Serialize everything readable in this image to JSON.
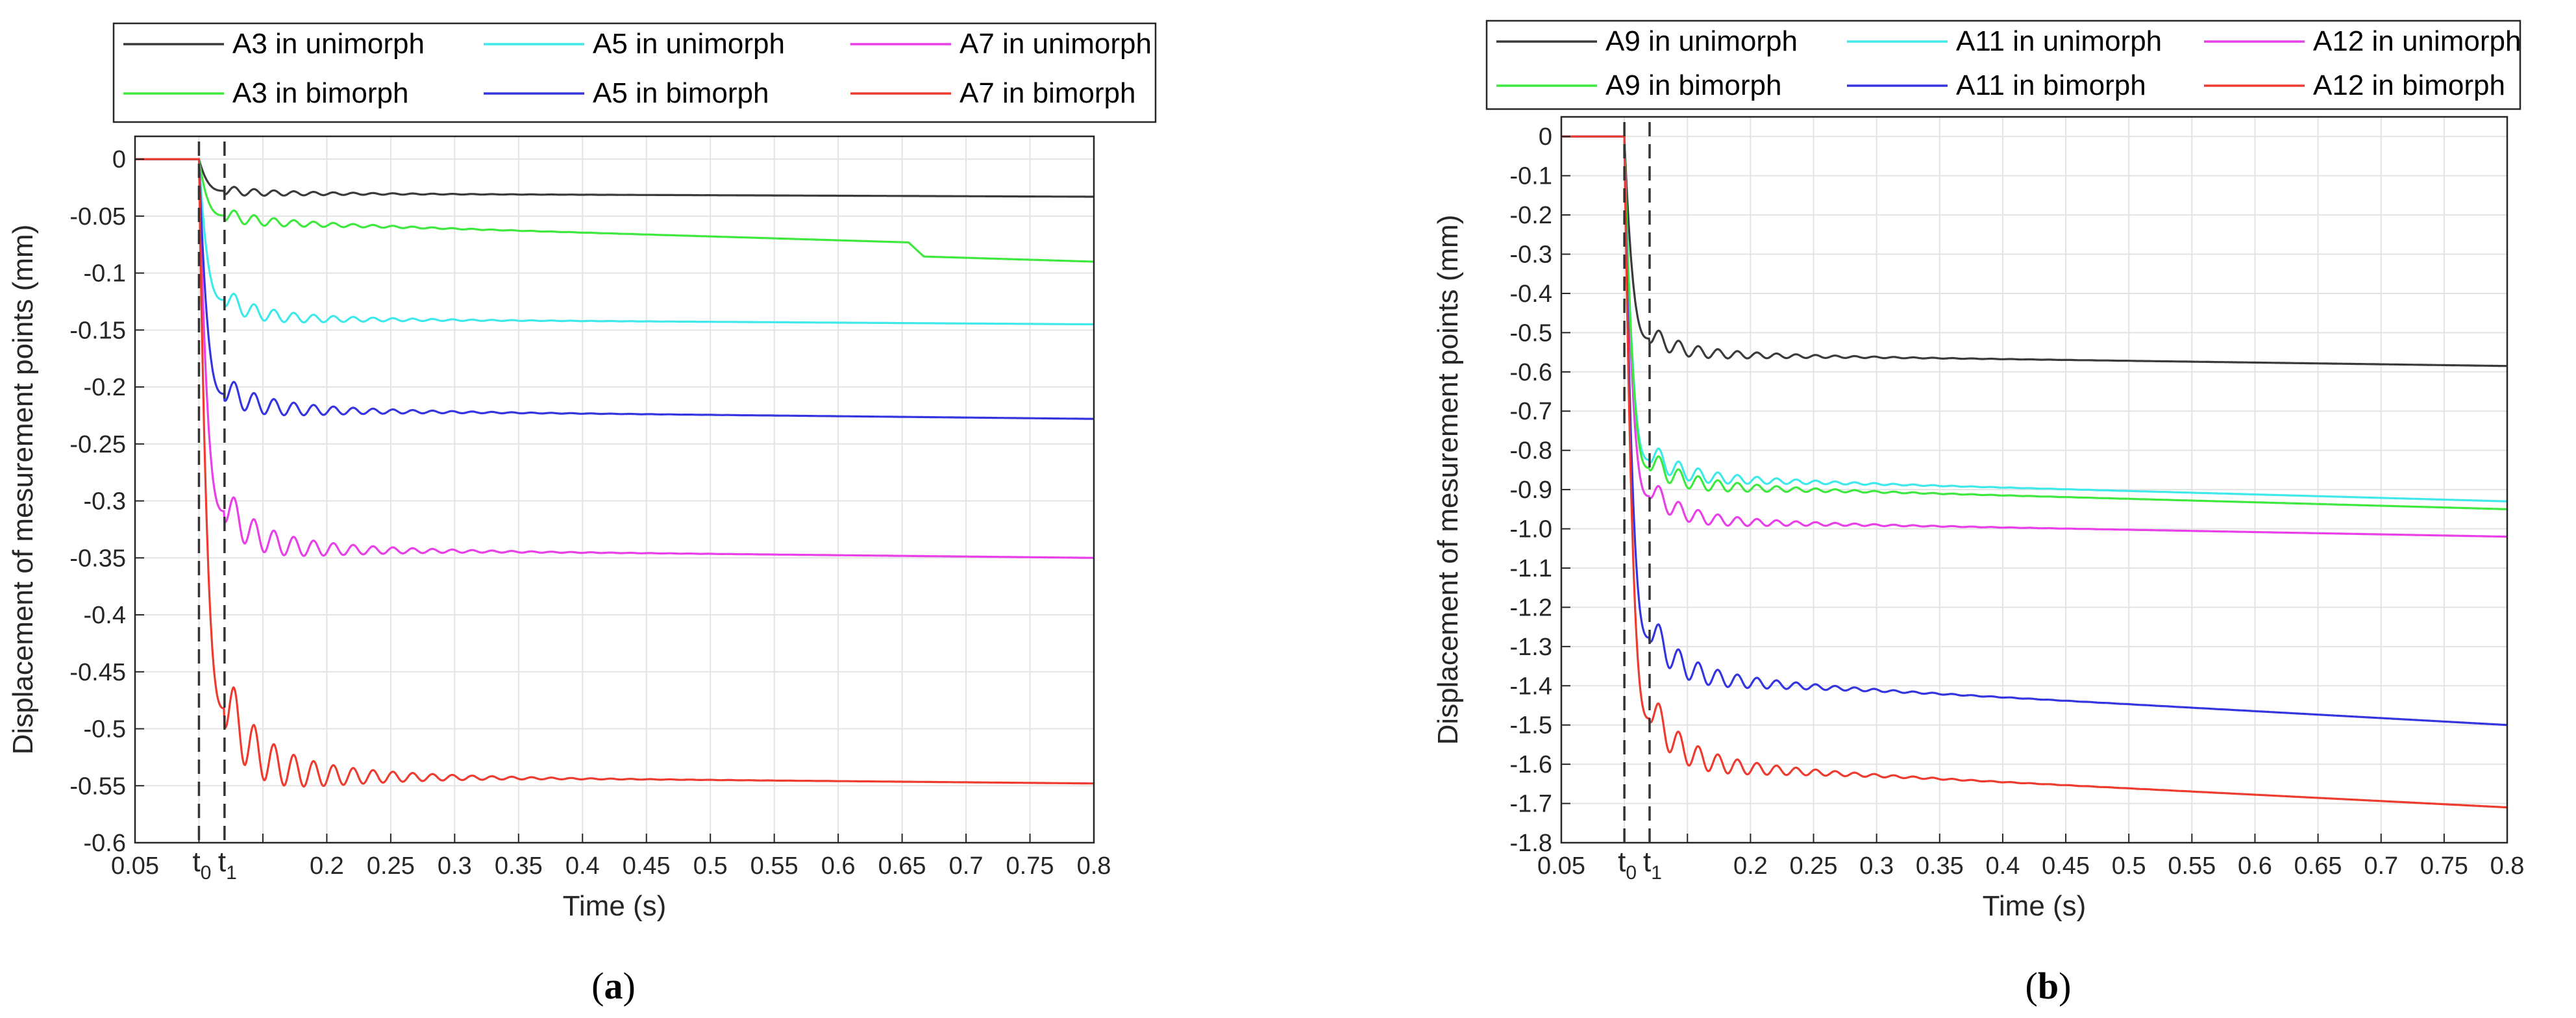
{
  "figure": {
    "caption_a": {
      "open": "(",
      "letter": "a",
      "close": ")"
    },
    "caption_b": {
      "open": "(",
      "letter": "b",
      "close": ")"
    }
  },
  "chart_data": [
    {
      "id": "a",
      "type": "line",
      "xlabel": "Time (s)",
      "ylabel": "Displacement of mesurement points (mm)",
      "xlim": [
        0.05,
        0.8
      ],
      "ylim": [
        -0.6,
        0.02
      ],
      "xticks": [
        0.05,
        0.2,
        0.25,
        0.3,
        0.35,
        0.4,
        0.45,
        0.5,
        0.55,
        0.6,
        0.65,
        0.7,
        0.75,
        0.8
      ],
      "xtick_labels": [
        "0.05",
        "0.2",
        "0.25",
        "0.3",
        "0.35",
        "0.4",
        "0.45",
        "0.5",
        "0.55",
        "0.6",
        "0.65",
        "0.7",
        "0.75",
        "0.8"
      ],
      "xgrid": [
        0.05,
        0.1,
        0.15,
        0.2,
        0.25,
        0.3,
        0.35,
        0.4,
        0.45,
        0.5,
        0.55,
        0.6,
        0.65,
        0.7,
        0.75,
        0.8
      ],
      "yticks": [
        0,
        -0.05,
        -0.1,
        -0.15,
        -0.2,
        -0.25,
        -0.3,
        -0.35,
        -0.4,
        -0.45,
        -0.5,
        -0.55,
        -0.6
      ],
      "ytick_labels": [
        "0",
        "-0.05",
        "-0.1",
        "-0.15",
        "-0.2",
        "-0.25",
        "-0.3",
        "-0.35",
        "-0.4",
        "-0.45",
        "-0.5",
        "-0.55",
        "-0.6"
      ],
      "grid": true,
      "markers": [
        {
          "label": "t",
          "sub": "0",
          "x": 0.1
        },
        {
          "label": "t",
          "sub": "1",
          "x": 0.12
        }
      ],
      "t0": 0.1,
      "t1": 0.12,
      "legend_position": "top",
      "series": [
        {
          "name": "A3 in unimorph",
          "color": "#3a3a3a",
          "final": -0.033,
          "peak": -0.027,
          "amp": 0.004,
          "settle": -0.03,
          "kink": null
        },
        {
          "name": "A5 in unimorph",
          "color": "#3fe8ea",
          "final": -0.145,
          "peak": -0.12,
          "amp": 0.009,
          "settle": -0.14,
          "kink": null
        },
        {
          "name": "A7 in unimorph",
          "color": "#e83fe8",
          "final": -0.35,
          "peak": -0.3,
          "amp": 0.018,
          "settle": -0.342,
          "kink": null
        },
        {
          "name": "A3 in bimorph",
          "color": "#3fe83f",
          "final": -0.078,
          "peak": -0.048,
          "amp": 0.006,
          "settle": -0.055,
          "kink": {
            "x": 0.665,
            "from": -0.063,
            "to": -0.075
          }
        },
        {
          "name": "A5 in bimorph",
          "color": "#3535e0",
          "final": -0.228,
          "peak": -0.2,
          "amp": 0.012,
          "settle": -0.22,
          "kink": null
        },
        {
          "name": "A7 in bimorph",
          "color": "#ee3b30",
          "final": -0.548,
          "peak": -0.468,
          "amp": 0.03,
          "settle": -0.541,
          "kink": null
        }
      ]
    },
    {
      "id": "b",
      "type": "line",
      "xlabel": "Time (s)",
      "ylabel": "Displacement of mesurement points (mm)",
      "xlim": [
        0.05,
        0.8
      ],
      "ylim": [
        -1.8,
        0.05
      ],
      "xticks": [
        0.05,
        0.2,
        0.25,
        0.3,
        0.35,
        0.4,
        0.45,
        0.5,
        0.55,
        0.6,
        0.65,
        0.7,
        0.75,
        0.8
      ],
      "xtick_labels": [
        "0.05",
        "0.2",
        "0.25",
        "0.3",
        "0.35",
        "0.4",
        "0.45",
        "0.5",
        "0.55",
        "0.6",
        "0.65",
        "0.7",
        "0.75",
        "0.8"
      ],
      "xgrid": [
        0.05,
        0.1,
        0.15,
        0.2,
        0.25,
        0.3,
        0.35,
        0.4,
        0.45,
        0.5,
        0.55,
        0.6,
        0.65,
        0.7,
        0.75,
        0.8
      ],
      "yticks": [
        0,
        -0.1,
        -0.2,
        -0.3,
        -0.4,
        -0.5,
        -0.6,
        -0.7,
        -0.8,
        -0.9,
        -1.0,
        -1.1,
        -1.2,
        -1.3,
        -1.4,
        -1.5,
        -1.6,
        -1.7,
        -1.8
      ],
      "ytick_labels": [
        "0",
        "-0.1",
        "-0.2",
        "-0.3",
        "-0.4",
        "-0.5",
        "-0.6",
        "-0.7",
        "-0.8",
        "-0.9",
        "-1.0",
        "-1.1",
        "-1.2",
        "-1.3",
        "-1.4",
        "-1.5",
        "-1.6",
        "-1.7",
        "-1.8"
      ],
      "grid": true,
      "markers": [
        {
          "label": "t",
          "sub": "0",
          "x": 0.1
        },
        {
          "label": "t",
          "sub": "1",
          "x": 0.12
        }
      ],
      "t0": 0.1,
      "t1": 0.12,
      "legend_position": "top",
      "series": [
        {
          "name": "A9 in unimorph",
          "color": "#3a3a3a",
          "final": -0.585,
          "peak": -0.5,
          "amp": 0.025,
          "settle": -0.555,
          "kink": null
        },
        {
          "name": "A11 in unimorph",
          "color": "#3fe8ea",
          "final": -0.93,
          "peak": -0.8,
          "amp": 0.03,
          "settle": -0.87,
          "kink": null
        },
        {
          "name": "A12 in unimorph",
          "color": "#e83fe8",
          "final": -1.02,
          "peak": -0.89,
          "amp": 0.03,
          "settle": -0.98,
          "kink": null
        },
        {
          "name": "A9 in bimorph",
          "color": "#3fe83f",
          "final": -0.95,
          "peak": -0.82,
          "amp": 0.03,
          "settle": -0.89,
          "kink": null
        },
        {
          "name": "A11 in bimorph",
          "color": "#3535e0",
          "final": -1.5,
          "peak": -1.24,
          "amp": 0.045,
          "settle": -1.38,
          "kink": null
        },
        {
          "name": "A12 in bimorph",
          "color": "#ee3b30",
          "final": -1.71,
          "peak": -1.44,
          "amp": 0.05,
          "settle": -1.6,
          "kink": null
        }
      ]
    }
  ]
}
